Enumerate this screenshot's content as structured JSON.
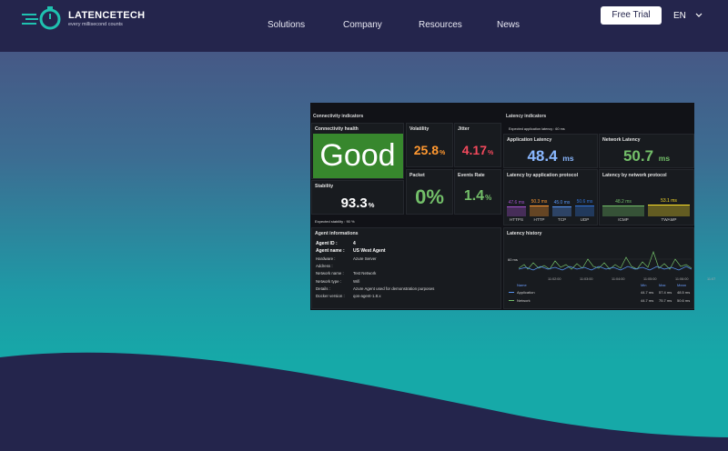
{
  "header": {
    "brand": "LATENCETECH",
    "tagline": "every millisecond counts",
    "nav": [
      "Solutions",
      "Company",
      "Resources",
      "News"
    ],
    "cta": "Free Trial",
    "language": "EN"
  },
  "dashboard": {
    "connectivity": {
      "title": "Connectivity indicators",
      "health": {
        "label": "Connectivity health",
        "value": "Good"
      },
      "volatility": {
        "label": "Volatility",
        "value": "25.8",
        "unit": "%"
      },
      "jitter": {
        "label": "Jitter",
        "value": "4.17",
        "unit": "%"
      },
      "stability": {
        "label": "Stability",
        "value": "93.3",
        "unit": "%"
      },
      "packet": {
        "label": "Packet",
        "value": "0%"
      },
      "events": {
        "label": "Events Rate",
        "value": "1.4",
        "unit": "%"
      },
      "note": "Expected stability :   90 %"
    },
    "latency": {
      "title": "Latency indicators",
      "note": "Expected application latency :   60 ms",
      "application": {
        "label": "Application Latency",
        "value": "48.4",
        "unit": "ms"
      },
      "network": {
        "label": "Network Latency",
        "value": "50.7",
        "unit": "ms"
      }
    },
    "by_app_protocol": {
      "title": "Latency by application protocol",
      "categories": [
        "HTTPS",
        "HTTP",
        "TCP",
        "UDP"
      ],
      "values": [
        47.6,
        50.3,
        45.0,
        50.6
      ],
      "value_labels": [
        "47.6 ms",
        "50.3 ms",
        "45.0 ms",
        "50.6 ms"
      ],
      "colors": [
        "#a352cc",
        "#ff9830",
        "#5794f2",
        "#3274d9"
      ]
    },
    "by_net_protocol": {
      "title": "Latency by network protocol",
      "categories": [
        "ICMP",
        "TWAMP"
      ],
      "values": [
        48.2,
        53.1
      ],
      "value_labels": [
        "48.2 ms",
        "53.1 ms"
      ],
      "colors": [
        "#73bf69",
        "#fade2a"
      ]
    },
    "agent": {
      "title": "Agent informations",
      "rows": [
        {
          "key": "Agent ID :",
          "value": "4"
        },
        {
          "key": "Agent name :",
          "value": "US West Agent"
        },
        {
          "key": "Hardware :",
          "value": "Azure Server"
        },
        {
          "key": "Address :"
        },
        {
          "key": "Network name :",
          "value": "Test Network"
        },
        {
          "key": "Network type :",
          "value": "Wifi"
        },
        {
          "key": "Details :",
          "value": "Azure Agent used for demonstration purposes"
        },
        {
          "key": "Docker version :",
          "value": "qos-agent-1.8.x"
        }
      ]
    },
    "history": {
      "title": "Latency history",
      "y_label": "60 ms",
      "times": [
        "11:02:00",
        "11:03:00",
        "11:04:00",
        "11:05:00",
        "11:06:00",
        "11:07"
      ],
      "legend_header": [
        "Name",
        "Min",
        "Max",
        "Mean"
      ],
      "rows": [
        {
          "name": "Application",
          "min": "44.7 ms",
          "max": "57.4 ms",
          "mean": "48.5 ms"
        },
        {
          "name": "Network",
          "min": "44.7 ms",
          "max": "75.7 ms",
          "mean": "50.6 ms"
        }
      ]
    }
  }
}
